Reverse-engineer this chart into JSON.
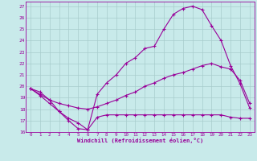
{
  "bg_color": "#c8eaea",
  "grid_color": "#a8cccc",
  "line_color": "#990099",
  "xlim": [
    -0.5,
    23.5
  ],
  "ylim": [
    16,
    27.4
  ],
  "yticks": [
    16,
    17,
    18,
    19,
    20,
    21,
    22,
    23,
    24,
    25,
    26,
    27
  ],
  "xticks": [
    0,
    1,
    2,
    3,
    4,
    5,
    6,
    7,
    8,
    9,
    10,
    11,
    12,
    13,
    14,
    15,
    16,
    17,
    18,
    19,
    20,
    21,
    22,
    23
  ],
  "xlabel": "Windchill (Refroidissement éolien,°C)",
  "line1_x": [
    0,
    1,
    2,
    3,
    4,
    5,
    6,
    7,
    8,
    9,
    10,
    11,
    12,
    13,
    14,
    15,
    16,
    17,
    18,
    19,
    20,
    21,
    22,
    23
  ],
  "line1_y": [
    19.8,
    19.5,
    18.8,
    17.8,
    17.0,
    16.3,
    16.2,
    19.3,
    20.3,
    21.0,
    22.0,
    22.5,
    23.3,
    23.5,
    25.0,
    26.3,
    26.8,
    27.0,
    26.7,
    25.3,
    24.0,
    21.8,
    20.2,
    18.1
  ],
  "line2_x": [
    0,
    1,
    2,
    3,
    4,
    5,
    6,
    7,
    8,
    9,
    10,
    11,
    12,
    13,
    14,
    15,
    16,
    17,
    18,
    19,
    20,
    21,
    22,
    23
  ],
  "line2_y": [
    19.8,
    19.3,
    18.8,
    18.5,
    18.3,
    18.1,
    18.0,
    18.2,
    18.5,
    18.8,
    19.2,
    19.5,
    20.0,
    20.3,
    20.7,
    21.0,
    21.2,
    21.5,
    21.8,
    22.0,
    21.7,
    21.5,
    20.5,
    18.5
  ],
  "line3_x": [
    0,
    1,
    2,
    3,
    4,
    5,
    6,
    7,
    8,
    9,
    10,
    11,
    12,
    13,
    14,
    15,
    16,
    17,
    18,
    19,
    20,
    21,
    22,
    23
  ],
  "line3_y": [
    19.8,
    19.2,
    18.5,
    17.8,
    17.2,
    16.8,
    16.2,
    17.3,
    17.5,
    17.5,
    17.5,
    17.5,
    17.5,
    17.5,
    17.5,
    17.5,
    17.5,
    17.5,
    17.5,
    17.5,
    17.5,
    17.3,
    17.2,
    17.2
  ]
}
